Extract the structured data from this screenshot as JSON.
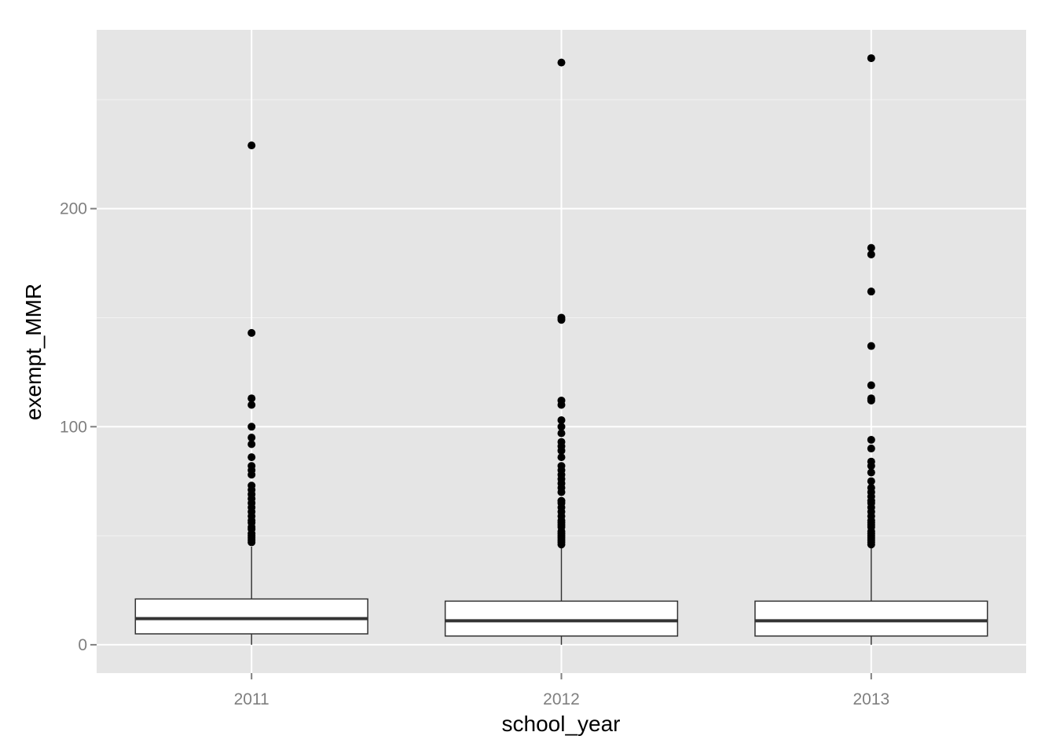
{
  "chart_data": {
    "type": "boxplot",
    "title": "",
    "xlabel": "school_year",
    "ylabel": "exempt_MMR",
    "categories": [
      "2011",
      "2012",
      "2013"
    ],
    "ylim": [
      -13,
      282
    ],
    "y_ticks": [
      0,
      100,
      200
    ],
    "y_tick_labels": [
      "0",
      "100",
      "200"
    ],
    "grid": true,
    "legend": "none",
    "colors": {
      "panel_background": "#e5e5e5",
      "grid_major": "#ffffff",
      "grid_minor": "#f2f2f2",
      "box_fill": "#ffffff",
      "box_outline": "#333333",
      "outlier": "#000000"
    },
    "boxes": [
      {
        "category": "2011",
        "lower_whisker": 0,
        "q1": 5,
        "median": 12,
        "q3": 21,
        "upper_whisker": 45,
        "outliers": [
          229,
          143,
          113,
          110,
          100,
          95,
          92,
          86,
          82,
          80,
          78,
          73,
          71,
          69,
          67,
          65,
          63,
          61,
          59,
          57,
          56,
          54,
          53,
          51,
          50,
          49,
          48,
          47
        ]
      },
      {
        "category": "2012",
        "lower_whisker": 0,
        "q1": 4,
        "median": 11,
        "q3": 20,
        "upper_whisker": 45,
        "outliers": [
          267,
          150,
          149,
          112,
          110,
          103,
          100,
          97,
          93,
          91,
          89,
          86,
          82,
          80,
          78,
          76,
          74,
          72,
          70,
          66,
          65,
          63,
          61,
          59,
          57,
          56,
          55,
          54,
          52,
          51,
          50,
          49,
          48,
          47,
          46
        ]
      },
      {
        "category": "2013",
        "lower_whisker": 0,
        "q1": 4,
        "median": 11,
        "q3": 20,
        "upper_whisker": 45,
        "outliers": [
          269,
          182,
          179,
          162,
          137,
          119,
          113,
          112,
          94,
          90,
          84,
          82,
          79,
          75,
          72,
          70,
          68,
          66,
          65,
          63,
          61,
          59,
          57,
          56,
          55,
          54,
          52,
          51,
          50,
          49,
          48,
          47,
          46
        ]
      }
    ]
  }
}
